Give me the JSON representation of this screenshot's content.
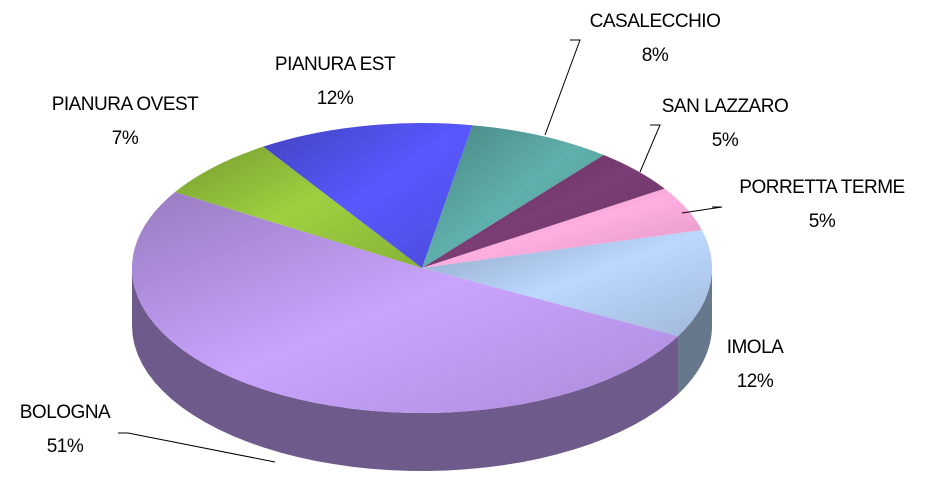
{
  "chart_data": {
    "type": "pie3d",
    "categories": [
      "CASALECCHIO",
      "SAN LAZZARO",
      "PORRETTA TERME",
      "IMOLA",
      "BOLOGNA",
      "PIANURA OVEST",
      "PIANURA EST"
    ],
    "values": [
      8,
      5,
      5,
      12,
      51,
      7,
      12
    ],
    "value_labels": [
      "8%",
      "5%",
      "5%",
      "12%",
      "51%",
      "7%",
      "12%"
    ],
    "colors": [
      "#5fb0ac",
      "#7a3d75",
      "#ffaee0",
      "#bcd8ff",
      "#c9a4ff",
      "#9fd040",
      "#5858ff"
    ]
  }
}
